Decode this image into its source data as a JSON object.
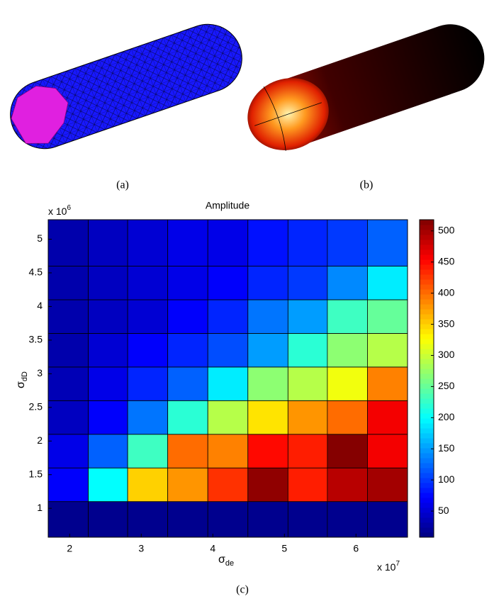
{
  "panels": {
    "a": "(a)",
    "b": "(b)"
  },
  "chart_data": {
    "type": "heatmap",
    "caption": "(c)",
    "title": "Amplitude",
    "colormap": "jet",
    "xlabel": "σ",
    "xlabel_sub": "de",
    "ylabel": "σ",
    "ylabel_sub": "dD",
    "x_multiplier": "x 10",
    "x_multiplier_exp": "7",
    "y_multiplier": "x 10",
    "y_multiplier_exp": "6",
    "x_edges": [
      1.7,
      2.26,
      2.81,
      3.37,
      3.93,
      4.49,
      5.05,
      5.6,
      6.16,
      6.72
    ],
    "y_edges": [
      0.57,
      1.1,
      1.6,
      2.1,
      2.6,
      3.1,
      3.6,
      4.1,
      4.6,
      5.29
    ],
    "xlim": [
      1.7,
      6.72
    ],
    "ylim": [
      0.57,
      5.29
    ],
    "xticks": [
      2,
      3,
      4,
      5,
      6
    ],
    "yticks": [
      1,
      1.5,
      2,
      2.5,
      3,
      3.5,
      4,
      4.5,
      5
    ],
    "clim": [
      8,
      518
    ],
    "cticks": [
      50,
      100,
      150,
      200,
      250,
      300,
      350,
      400,
      450,
      500
    ],
    "values": [
      [
        15,
        15,
        15,
        15,
        15,
        15,
        15,
        15,
        15
      ],
      [
        70,
        200,
        350,
        380,
        430,
        510,
        440,
        490,
        500
      ],
      [
        60,
        120,
        230,
        400,
        390,
        450,
        440,
        515,
        460
      ],
      [
        40,
        70,
        130,
        220,
        290,
        340,
        380,
        400,
        460
      ],
      [
        35,
        60,
        90,
        120,
        190,
        270,
        290,
        320,
        390
      ],
      [
        30,
        50,
        70,
        90,
        110,
        150,
        220,
        270,
        290
      ],
      [
        30,
        40,
        50,
        70,
        90,
        130,
        150,
        230,
        250
      ],
      [
        30,
        40,
        50,
        60,
        70,
        90,
        100,
        140,
        190
      ],
      [
        30,
        40,
        50,
        60,
        60,
        80,
        90,
        100,
        120
      ]
    ]
  }
}
